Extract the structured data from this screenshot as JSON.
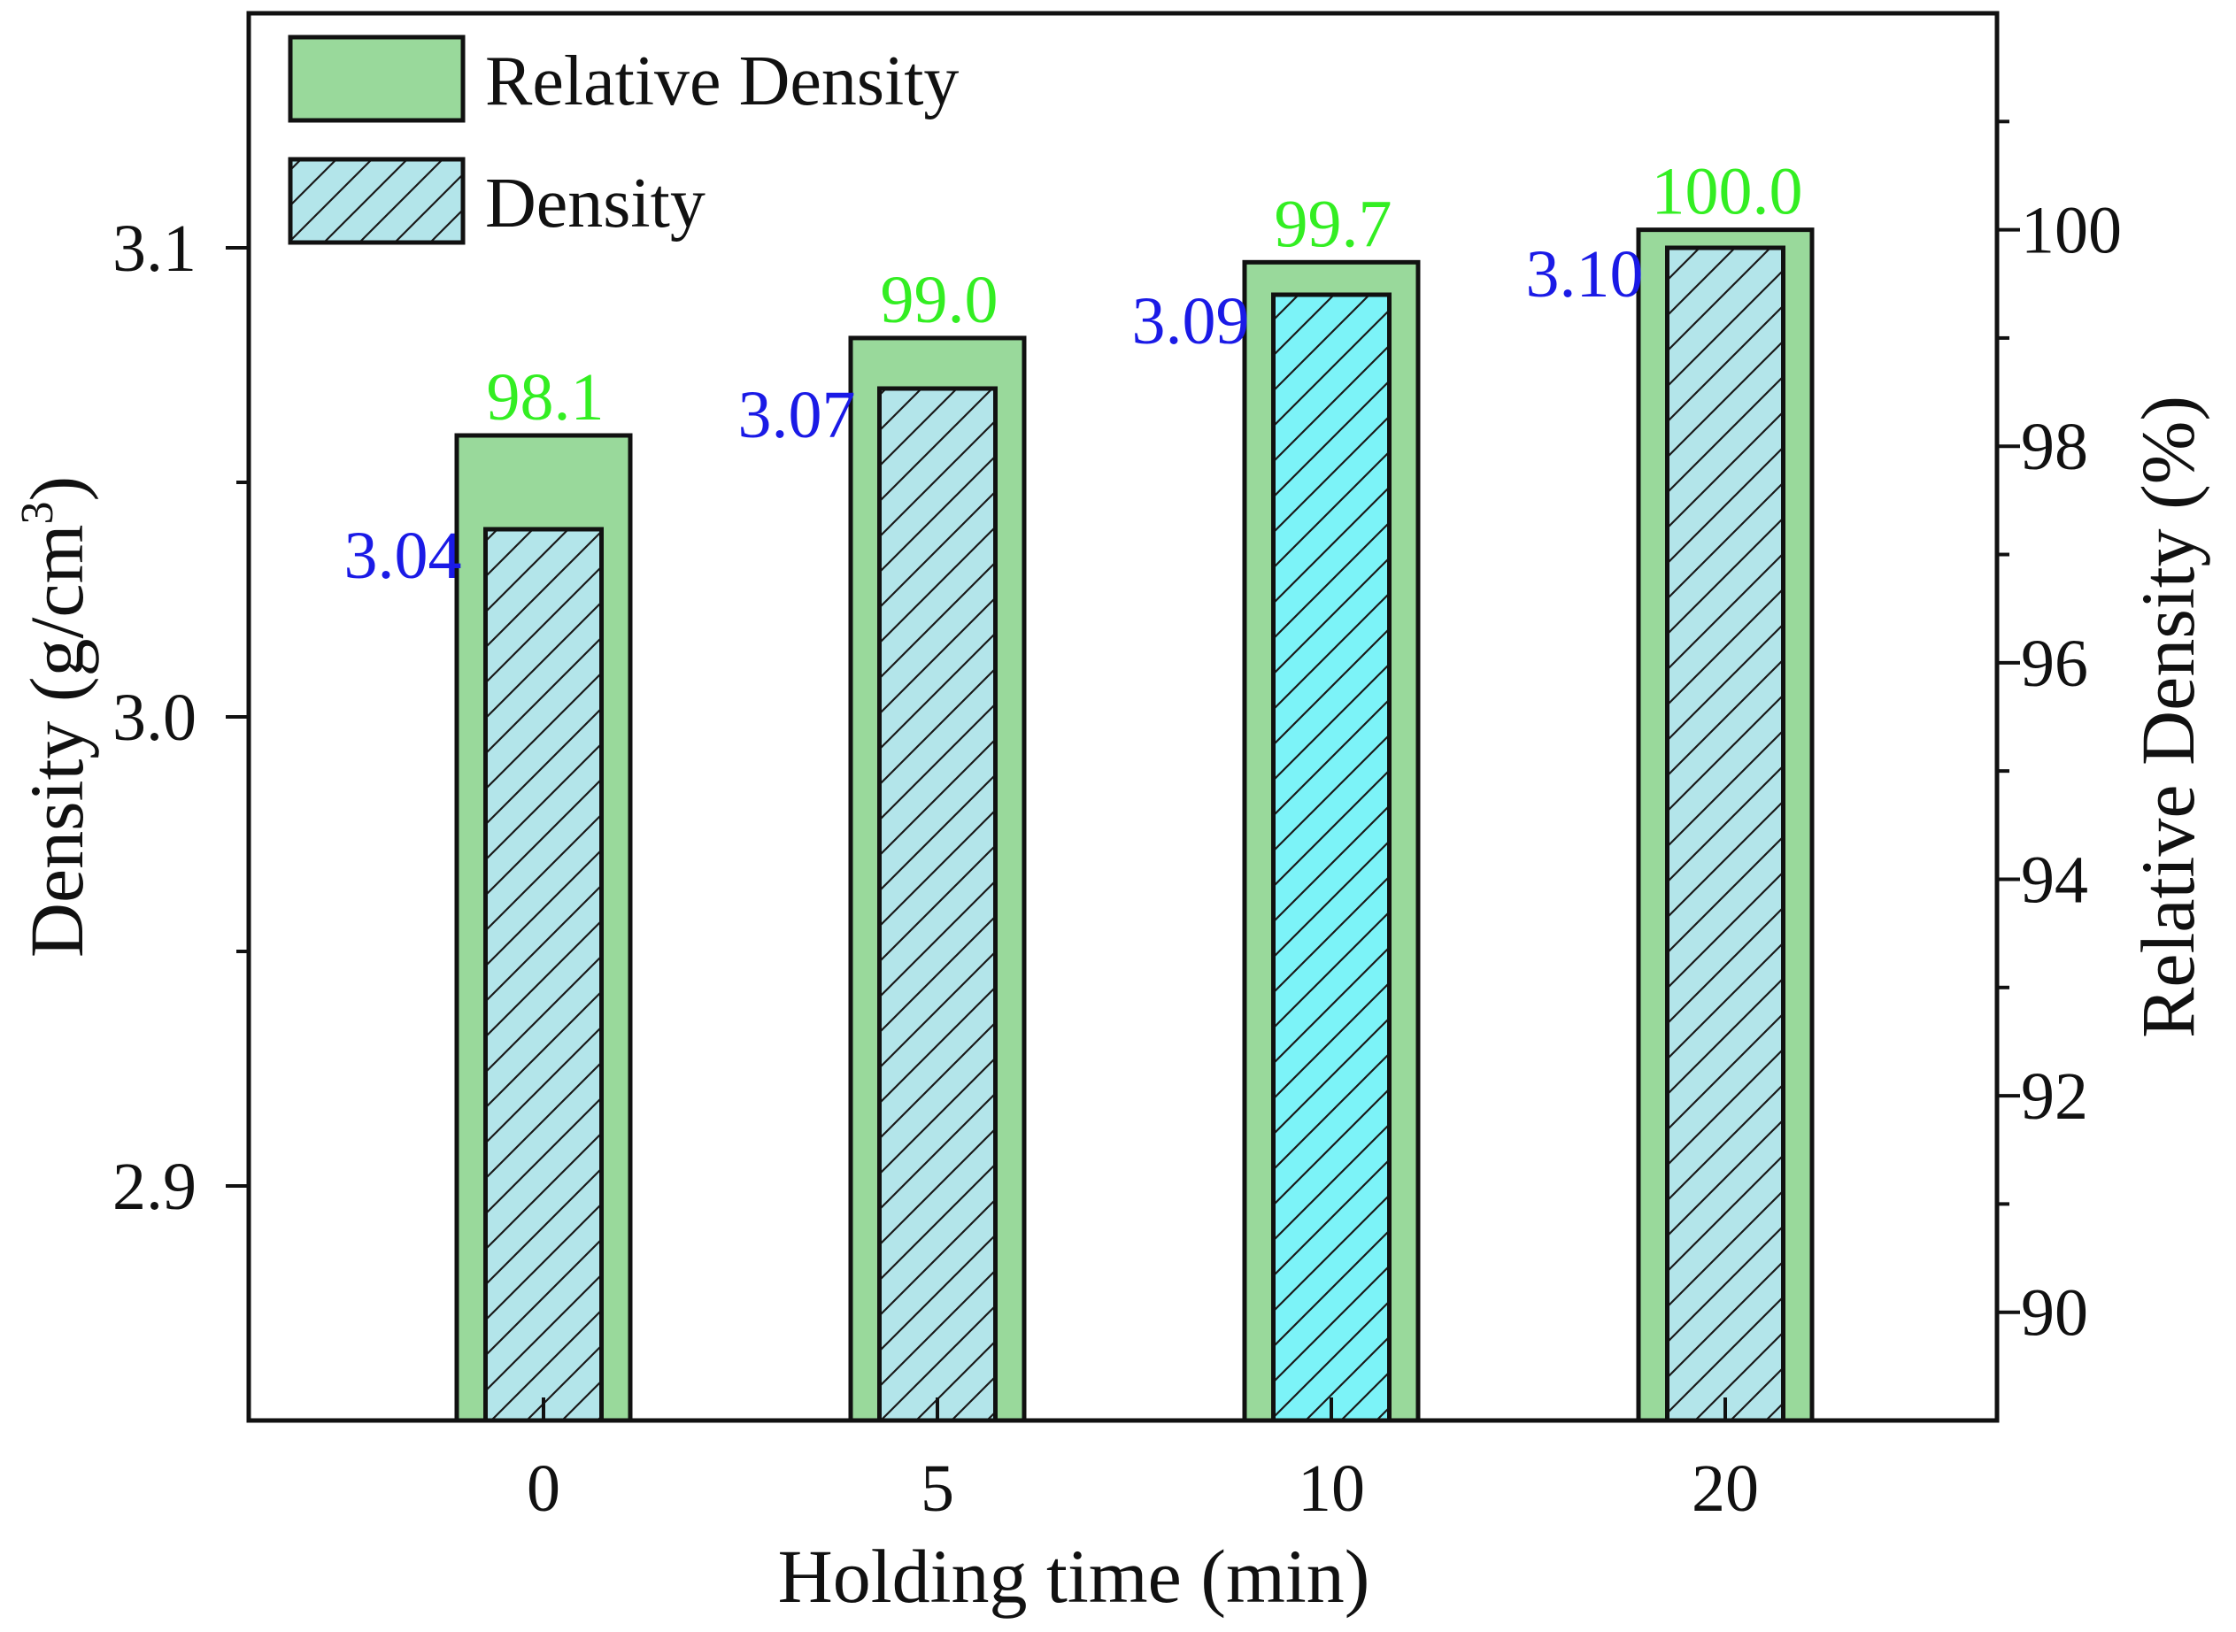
{
  "chart_data": {
    "type": "bar",
    "categories": [
      "0",
      "5",
      "10",
      "20"
    ],
    "xlabel": "Holding time (min)",
    "ylabel_left": "Density (g/cm",
    "ylabel_left_sup": "3",
    "ylabel_left_close": ")",
    "ylabel_right": "Relative Density (%)",
    "left_axis": {
      "ylim": [
        2.85,
        3.15
      ],
      "major_ticks": [
        2.9,
        3.0,
        3.1
      ],
      "tick_labels": [
        "2.9",
        "3.0",
        "3.1"
      ],
      "minor_step": 0.05
    },
    "right_axis": {
      "ylim": [
        89,
        102
      ],
      "major_ticks": [
        90,
        92,
        94,
        96,
        98,
        100
      ],
      "tick_labels": [
        "90",
        "92",
        "94",
        "96",
        "98",
        "100"
      ],
      "minor_step": 1
    },
    "series": [
      {
        "name": "Relative Density",
        "axis": "right",
        "values": [
          98.1,
          99.0,
          99.7,
          100.0
        ],
        "value_labels": [
          "98.1",
          "99.0",
          "99.7",
          "100.0"
        ],
        "color": "#99d99b",
        "label_color": "#33ee22"
      },
      {
        "name": "Density",
        "axis": "left",
        "values": [
          3.04,
          3.07,
          3.09,
          3.1
        ],
        "value_labels": [
          "3.04",
          "3.07",
          "3.09",
          "3.10"
        ],
        "color": "#b3e5ea",
        "highlight_color": "#7cf3f8",
        "highlight_index": 2,
        "label_color": "#1a1ae6",
        "pattern": "diagonal-hatch"
      }
    ],
    "legend": {
      "position": "top-left",
      "entries": [
        "Relative Density",
        "Density"
      ]
    }
  }
}
